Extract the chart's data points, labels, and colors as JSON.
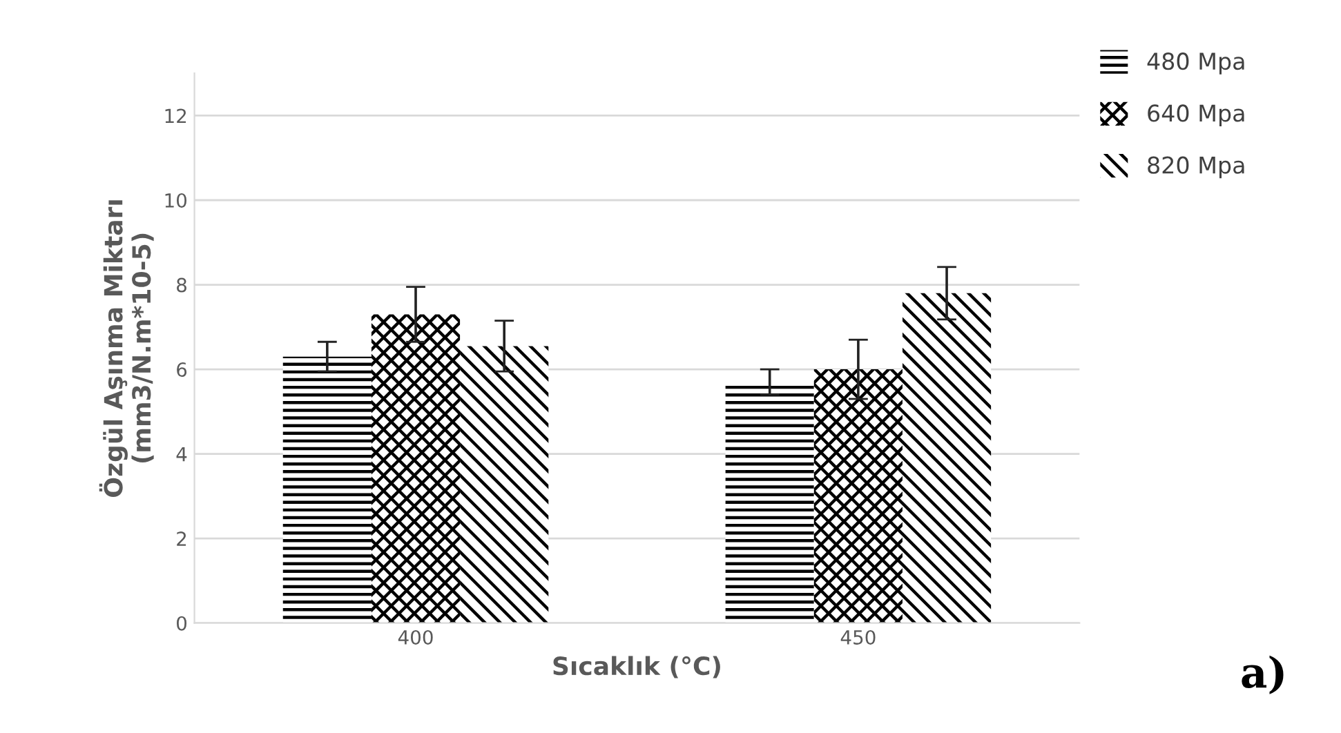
{
  "chart_data": {
    "type": "bar",
    "xlabel": "Sıcaklık (°C)",
    "ylabel": "Özgül Aşınma Miktarı\n(mm3/N.m*10-5)",
    "categories": [
      "400",
      "450"
    ],
    "series": [
      {
        "name": "480 Mpa",
        "color": "#000000",
        "values": [
          6.3,
          5.7
        ],
        "errors": [
          0.35,
          0.3
        ]
      },
      {
        "name": "640 Mpa",
        "color": "#000000",
        "values": [
          7.3,
          6.0
        ],
        "errors": [
          0.65,
          0.7
        ]
      },
      {
        "name": "820 Mpa",
        "color": "#000000",
        "values": [
          6.55,
          7.8
        ],
        "errors": [
          0.6,
          0.62
        ]
      }
    ],
    "ylim": [
      0,
      13
    ],
    "yticks": [
      0,
      2,
      4,
      6,
      8,
      10,
      12
    ],
    "grid": "y",
    "legend": "top right",
    "annotations": [
      "a)"
    ]
  }
}
